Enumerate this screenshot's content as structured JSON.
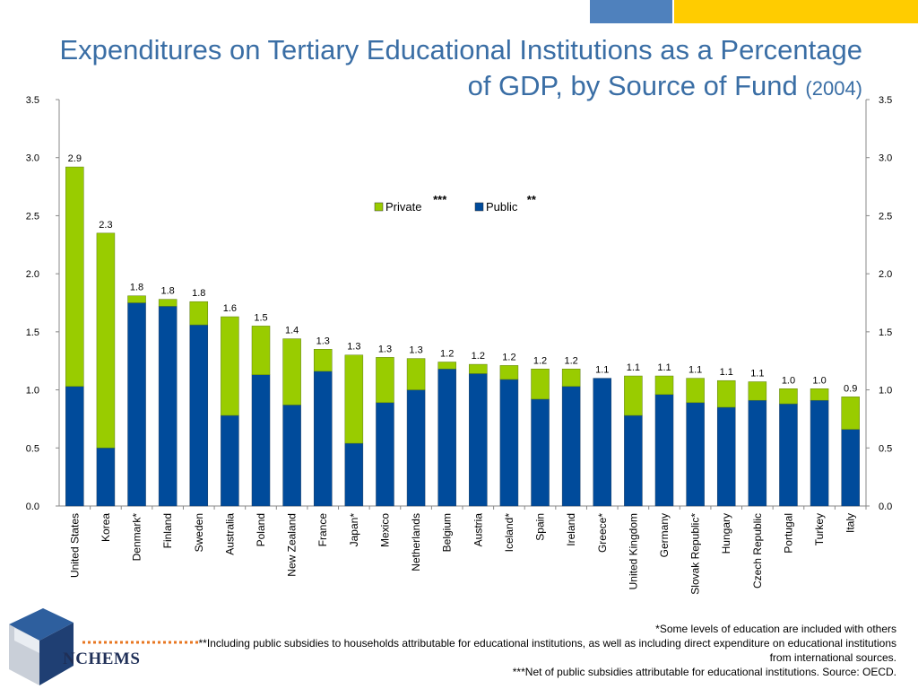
{
  "title": {
    "main": "Expenditures on Tertiary Educational Institutions as a Percentage of GDP, by Source of Fund",
    "year": "(2004)"
  },
  "colors": {
    "private": "#99cc00",
    "public": "#004b9b",
    "title": "#3a6ea5",
    "bar_top": "#ffcc00",
    "bar_blue": "#4f81bd"
  },
  "chart_data": {
    "type": "bar",
    "stacked": true,
    "ylim": [
      0,
      3.5
    ],
    "yticks": [
      "0.0",
      "0.5",
      "1.0",
      "1.5",
      "2.0",
      "2.5",
      "3.0",
      "3.5"
    ],
    "dual_y_axis": true,
    "grid": false,
    "legend": {
      "placement": "top-center",
      "entries": [
        {
          "name": "Private",
          "marker": "***"
        },
        {
          "name": "Public",
          "marker": "**"
        }
      ]
    },
    "categories": [
      "United States",
      "Korea",
      "Denmark*",
      "Finland",
      "Sweden",
      "Australia",
      "Poland",
      "New Zealand",
      "France",
      "Japan*",
      "Mexico",
      "Netherlands",
      "Belgium",
      "Austria",
      "Iceland*",
      "Spain",
      "Ireland",
      "Greece*",
      "United Kingdom",
      "Germany",
      "Slovak Republic*",
      "Hungary",
      "Czech Republic",
      "Portugal",
      "Turkey",
      "Italy"
    ],
    "series": [
      {
        "name": "Public",
        "values": [
          1.03,
          0.5,
          1.75,
          1.72,
          1.56,
          0.78,
          1.13,
          0.87,
          1.16,
          0.54,
          0.89,
          1.0,
          1.18,
          1.14,
          1.09,
          0.92,
          1.03,
          1.1,
          0.78,
          0.96,
          0.89,
          0.85,
          0.91,
          0.88,
          0.91,
          0.66
        ]
      },
      {
        "name": "Private",
        "values": [
          1.89,
          1.85,
          0.06,
          0.06,
          0.2,
          0.85,
          0.42,
          0.57,
          0.19,
          0.76,
          0.39,
          0.27,
          0.06,
          0.08,
          0.12,
          0.26,
          0.15,
          0.0,
          0.34,
          0.16,
          0.21,
          0.23,
          0.16,
          0.13,
          0.1,
          0.28
        ]
      }
    ],
    "total_labels": [
      "2.9",
      "2.3",
      "1.8",
      "1.8",
      "1.8",
      "1.6",
      "1.5",
      "1.4",
      "1.3",
      "1.3",
      "1.3",
      "1.3",
      "1.2",
      "1.2",
      "1.2",
      "1.2",
      "1.2",
      "1.1",
      "1.1",
      "1.1",
      "1.1",
      "1.1",
      "1.1",
      "1.0",
      "1.0",
      "0.9"
    ]
  },
  "footnotes": [
    "*Some levels of education are included with others",
    "**Including public subsidies to households attributable for educational institutions, as well as including direct expenditure on educational institutions from international sources.",
    "***Net of public subsidies attributable for educational institutions. Source: OECD."
  ],
  "logo": {
    "text": "NCHEMS",
    "icon": "nchems-cube-logo"
  }
}
